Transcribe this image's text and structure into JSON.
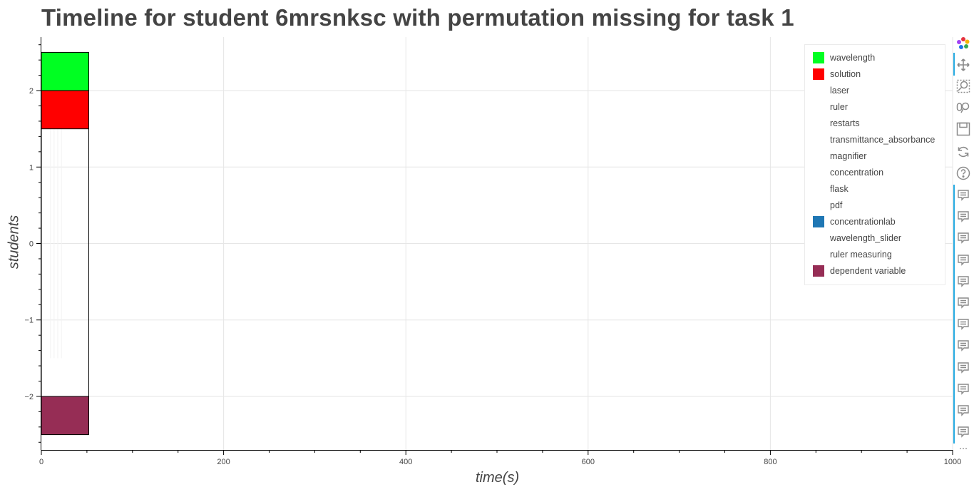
{
  "chart_data": {
    "type": "bar",
    "orientation": "horizontal",
    "title": "Timeline for student 6mrsnksc with permutation missing for task 1",
    "xlabel": "time(s)",
    "ylabel": "students",
    "xlim": [
      0,
      1000
    ],
    "ylim": [
      -2.7,
      2.7
    ],
    "x_ticks": [
      0,
      200,
      400,
      600,
      800,
      1000
    ],
    "y_ticks": [
      2,
      1,
      0,
      -1,
      -2
    ],
    "y_tick_labels": [
      "2",
      "1",
      "0",
      "−1",
      "−2"
    ],
    "grid": true,
    "legend_position": "top-right",
    "series": [
      {
        "name": "wavelength",
        "color": "#00ff22",
        "bars": [
          {
            "y0": 2.0,
            "y1": 2.5,
            "x0": 0,
            "x1": 52
          }
        ]
      },
      {
        "name": "solution",
        "color": "#ff0000",
        "bars": [
          {
            "y0": 1.5,
            "y1": 2.0,
            "x0": 0,
            "x1": 52
          }
        ]
      },
      {
        "name": "laser",
        "color": "#ffffff",
        "bars": []
      },
      {
        "name": "ruler",
        "color": "#ffffff",
        "bars": []
      },
      {
        "name": "restarts",
        "color": "#ffffff",
        "bars": []
      },
      {
        "name": "transmittance_absorbance",
        "color": "#ffffff",
        "bars": []
      },
      {
        "name": "magnifier",
        "color": "#ffffff",
        "bars": []
      },
      {
        "name": "concentration",
        "color": "#ffffff",
        "bars": []
      },
      {
        "name": "flask",
        "color": "#ffffff",
        "bars": []
      },
      {
        "name": "pdf",
        "color": "#ffffff",
        "bars": []
      },
      {
        "name": "concentrationlab",
        "color": "#1f77b4",
        "bars": []
      },
      {
        "name": "wavelength_slider",
        "color": "#ffffff",
        "bars": []
      },
      {
        "name": "ruler measuring",
        "color": "#ffffff",
        "bars": []
      },
      {
        "name": "dependent variable",
        "color": "#962d55",
        "bars": [
          {
            "y0": -2.5,
            "y1": -2.0,
            "x0": 0,
            "x1": 52
          }
        ]
      }
    ],
    "outline_bar": {
      "y0": -2.5,
      "y1": 2.5,
      "x0": 0,
      "x1": 52
    }
  },
  "toolbar": {
    "icons": [
      "bokeh-logo-icon",
      "pan-icon",
      "box-zoom-icon",
      "wheel-zoom-icon",
      "save-icon",
      "reset-icon",
      "help-icon",
      "hover-icon"
    ],
    "hover_count": 12,
    "more": "⋯"
  }
}
